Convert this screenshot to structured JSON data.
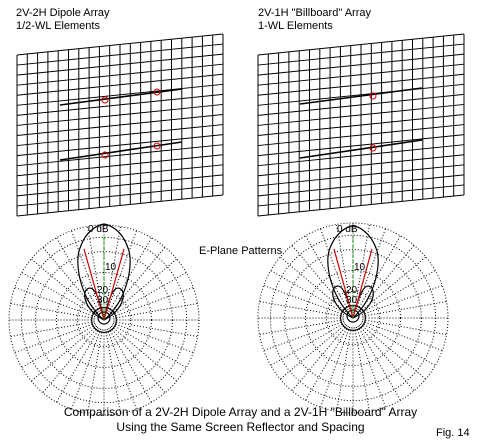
{
  "left_panel": {
    "title": "2V-2H Dipole Array",
    "subtitle": "1/2-WL Elements"
  },
  "right_panel": {
    "title": "2V-1H \"Billboard\" Array",
    "subtitle": "1-WL Elements"
  },
  "patterns_label": "E-Plane Patterns",
  "db_labels": [
    "0 dB",
    "10",
    "20",
    "30"
  ],
  "caption": {
    "line1": "Comparison of a 2V-2H Dipole Array and a 2V-1H \"Billboard\" Array",
    "line2": "Using the Same Screen Reflector and Spacing"
  },
  "figure_label": "Fig. 14",
  "colors": {
    "grid": "#000000",
    "element": "#d00000",
    "pattern_beam": "#d00000",
    "axis": "#009000"
  }
}
